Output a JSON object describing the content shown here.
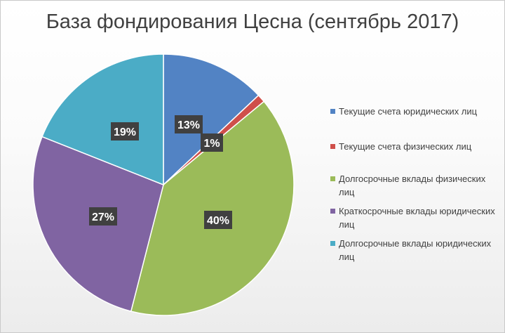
{
  "colors": {
    "current_legal": "#5283c4",
    "current_individual": "#cf4f4a",
    "long_term_individual": "#9bbb59",
    "short_term_legal": "#8064a2",
    "long_term_legal": "#4bacc6"
  },
  "chart_data": {
    "type": "pie",
    "title": "База фондирования Цесна (сентябрь 2017)",
    "slices": [
      {
        "name": "Текущие счета юридических лиц",
        "value": 13,
        "label": "13%",
        "color": "#5283c4"
      },
      {
        "name": "Текущие счета физических лиц",
        "value": 1,
        "label": "1%",
        "color": "#cf4f4a"
      },
      {
        "name": "Долгосрочные вклады физических лиц",
        "value": 40,
        "label": "40%",
        "color": "#9bbb59"
      },
      {
        "name": "Краткосрочные вклады юридических лиц",
        "value": 27,
        "label": "27%",
        "color": "#8064a2"
      },
      {
        "name": "Долгосрочные вклады юридических лиц",
        "value": 19,
        "label": "19%",
        "color": "#4bacc6"
      }
    ],
    "legend_position": "right"
  }
}
